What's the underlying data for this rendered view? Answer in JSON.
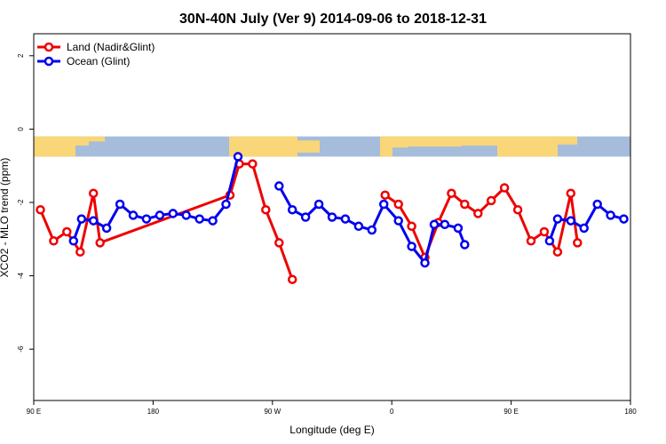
{
  "chart_data": {
    "type": "line",
    "title": "30N-40N July (Ver 9)   2014-09-06 to 2018-12-31",
    "xlabel": "Longitude (deg E)",
    "ylabel": "XCO2 - MLO trend (ppm)",
    "xlim": [
      90,
      315
    ],
    "ylim": [
      -7.4,
      2.6
    ],
    "x_ticks": [
      {
        "value": 90,
        "label": "90 E"
      },
      {
        "value": 135,
        "label": "180"
      },
      {
        "value": 180,
        "label": "90 W"
      },
      {
        "value": 225,
        "label": "0"
      },
      {
        "value": 270,
        "label": "90 E"
      },
      {
        "value": 315,
        "label": "180"
      }
    ],
    "y_ticks": [
      2,
      0,
      -2,
      -4,
      -6
    ],
    "legend_position": "top-left",
    "series": [
      {
        "name": "Land (Nadir&Glint)",
        "color": "#ee0000",
        "points": [
          [
            92.5,
            -2.2
          ],
          [
            97.5,
            -3.05
          ],
          [
            102.5,
            -2.8
          ],
          [
            107.5,
            -3.35
          ],
          [
            112.5,
            -1.75
          ],
          [
            115,
            -3.1
          ],
          [
            164,
            -1.8
          ],
          [
            167.5,
            -0.95
          ],
          [
            172.5,
            -0.95
          ],
          [
            177.5,
            -2.2
          ],
          [
            182.5,
            -3.1
          ],
          [
            187.5,
            -4.1
          ],
          null,
          [
            222.5,
            -1.8
          ],
          [
            227.5,
            -2.05
          ],
          [
            232.5,
            -2.65
          ],
          [
            237.5,
            -3.5
          ],
          [
            242.5,
            -2.55
          ],
          [
            247.5,
            -1.75
          ],
          [
            252.5,
            -2.05
          ],
          [
            257.5,
            -2.3
          ],
          [
            262.5,
            -1.95
          ],
          [
            267.5,
            -1.6
          ],
          [
            272.5,
            -2.2
          ],
          [
            277.5,
            -3.05
          ],
          [
            282.5,
            -2.8
          ],
          [
            287.5,
            -3.35
          ],
          [
            292.5,
            -1.75
          ],
          [
            295,
            -3.1
          ]
        ]
      },
      {
        "name": "Ocean (Glint)",
        "color": "#0000ee",
        "points": [
          [
            105,
            -3.05
          ],
          [
            108,
            -2.45
          ],
          [
            112.5,
            -2.5
          ],
          [
            117.5,
            -2.7
          ],
          [
            122.5,
            -2.05
          ],
          [
            127.5,
            -2.35
          ],
          [
            132.5,
            -2.45
          ],
          [
            137.5,
            -2.35
          ],
          [
            142.5,
            -2.3
          ],
          [
            147.5,
            -2.35
          ],
          [
            152.5,
            -2.45
          ],
          [
            157.5,
            -2.5
          ],
          [
            162.5,
            -2.05
          ],
          [
            167,
            -0.75
          ],
          null,
          [
            182.5,
            -1.55
          ],
          [
            187.5,
            -2.2
          ],
          [
            192.5,
            -2.4
          ],
          [
            197.5,
            -2.05
          ],
          [
            202.5,
            -2.4
          ],
          [
            207.5,
            -2.45
          ],
          [
            212.5,
            -2.65
          ],
          [
            217.5,
            -2.75
          ],
          [
            222,
            -2.05
          ],
          [
            227.5,
            -2.5
          ],
          [
            232.5,
            -3.2
          ],
          [
            237.5,
            -3.65
          ],
          [
            241,
            -2.6
          ],
          [
            245,
            -2.6
          ],
          [
            250,
            -2.7
          ],
          [
            252.5,
            -3.15
          ],
          null,
          [
            284.5,
            -3.05
          ],
          [
            287.5,
            -2.45
          ],
          [
            292.5,
            -2.5
          ],
          [
            297.5,
            -2.7
          ],
          [
            302.5,
            -2.05
          ],
          [
            307.5,
            -2.35
          ],
          [
            312.5,
            -2.45
          ]
        ]
      }
    ],
    "background_band": {
      "description_colors": {
        "land": "#f9d677",
        "ocean": "#a6bcdb"
      },
      "y_range": [
        -0.75,
        -0.2
      ]
    }
  }
}
